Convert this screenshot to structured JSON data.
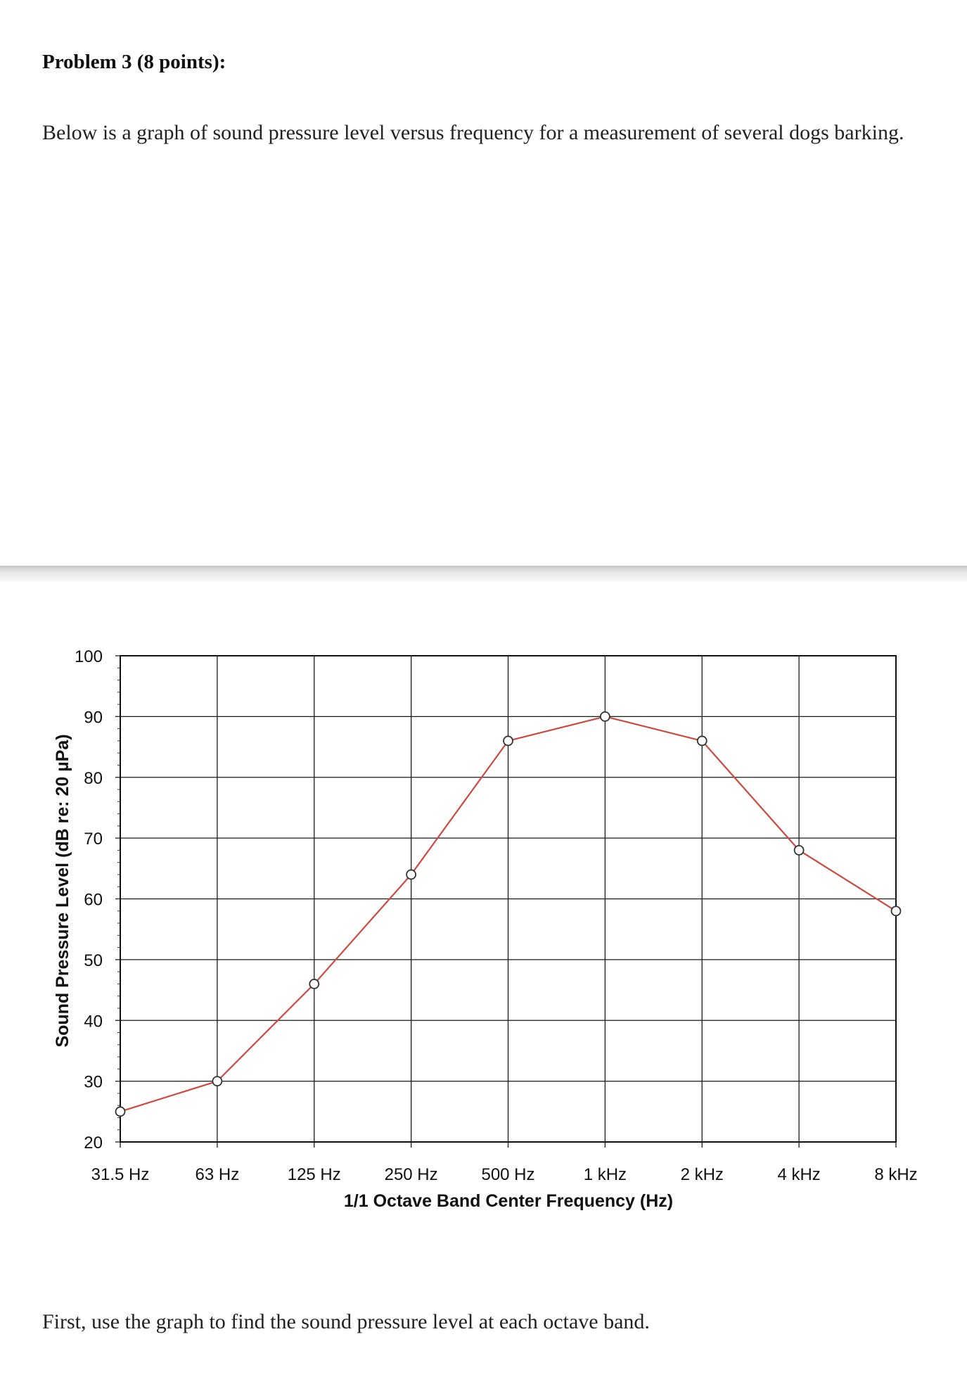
{
  "problem": {
    "heading": "Problem 3 (8 points):",
    "intro": "Below is a graph of sound pressure level versus frequency for a measurement of several dogs barking.",
    "instruction": "First, use the graph to find the sound pressure level at each octave band."
  },
  "chart_data": {
    "type": "line",
    "title": "",
    "xlabel": "1/1 Octave Band Center Frequency (Hz)",
    "ylabel": "Sound Pressure Level (dB re: 20 µPa)",
    "categories": [
      "31.5 Hz",
      "63 Hz",
      "125 Hz",
      "250 Hz",
      "500 Hz",
      "1 kHz",
      "2 kHz",
      "4 kHz",
      "8 kHz"
    ],
    "series": [
      {
        "values": [
          25,
          30,
          46,
          64,
          86,
          90,
          86,
          68,
          58
        ]
      }
    ],
    "ylim": [
      20,
      100
    ],
    "yticks": [
      20,
      30,
      40,
      50,
      60,
      70,
      80,
      90,
      100
    ],
    "grid": true,
    "legend": "none",
    "line_color": "#cc4a40",
    "marker_fill": "#ffffff",
    "marker_stroke": "#333333"
  }
}
